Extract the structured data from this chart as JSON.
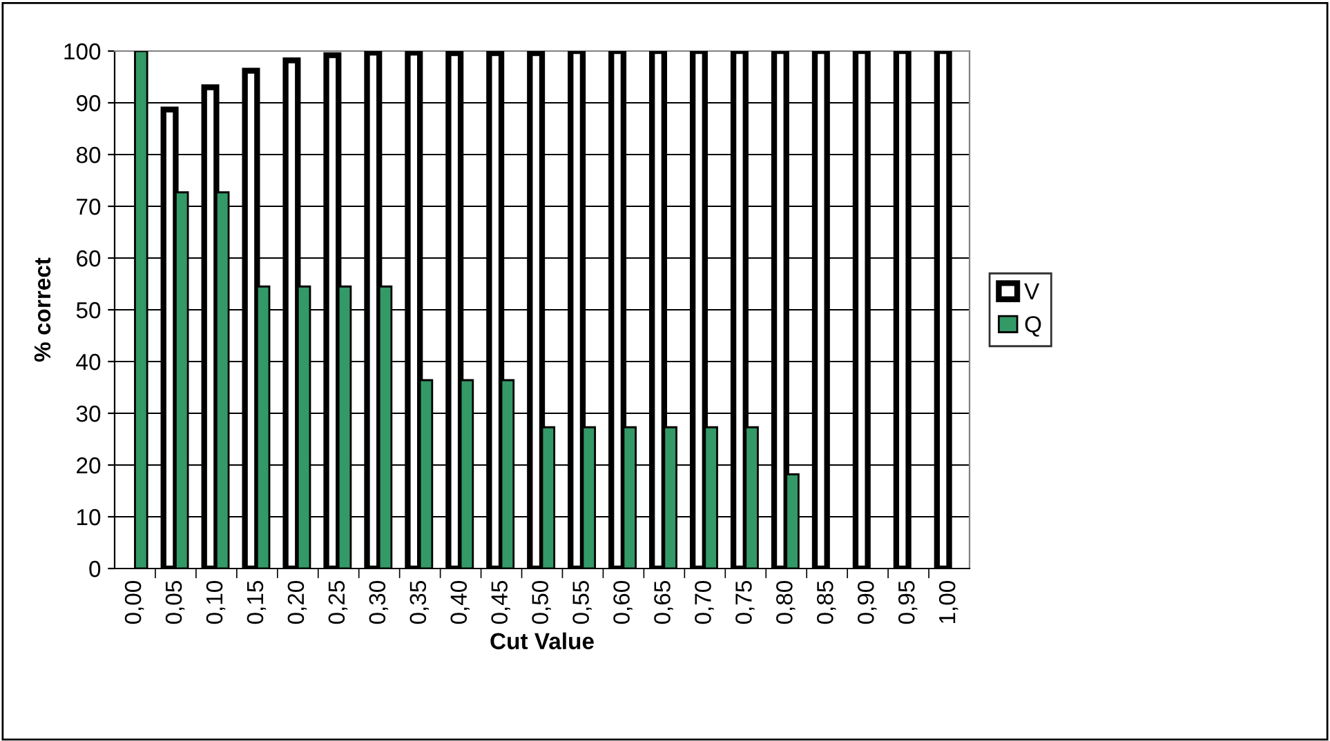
{
  "chart_data": {
    "type": "bar",
    "xlabel": "Cut Value",
    "ylabel": "% correct",
    "categories": [
      "0,00",
      "0,05",
      "0,10",
      "0,15",
      "0,20",
      "0,25",
      "0,30",
      "0,35",
      "0,40",
      "0,45",
      "0,50",
      "0,55",
      "0,60",
      "0,65",
      "0,70",
      "0,75",
      "0,80",
      "0,85",
      "0,90",
      "0,95",
      "1,00"
    ],
    "series": [
      {
        "name": "V",
        "color": "#ffffff",
        "values": [
          null,
          88.7,
          93,
          96.2,
          98.2,
          99.2,
          99.7,
          99.7,
          99.6,
          99.6,
          99.6,
          100,
          100,
          100,
          100,
          100,
          100,
          100,
          100,
          100,
          100
        ]
      },
      {
        "name": "Q",
        "color": "#339966",
        "values": [
          100,
          72.7,
          72.7,
          54.5,
          54.5,
          54.5,
          54.5,
          36.4,
          36.4,
          36.4,
          27.3,
          27.3,
          27.3,
          27.3,
          27.3,
          27.3,
          18.2,
          null,
          null,
          null,
          null
        ]
      }
    ],
    "ylim": [
      0,
      100
    ],
    "yticks": [
      0,
      10,
      20,
      30,
      40,
      50,
      60,
      70,
      80,
      90,
      100
    ],
    "grid": "y",
    "legend": "right"
  }
}
